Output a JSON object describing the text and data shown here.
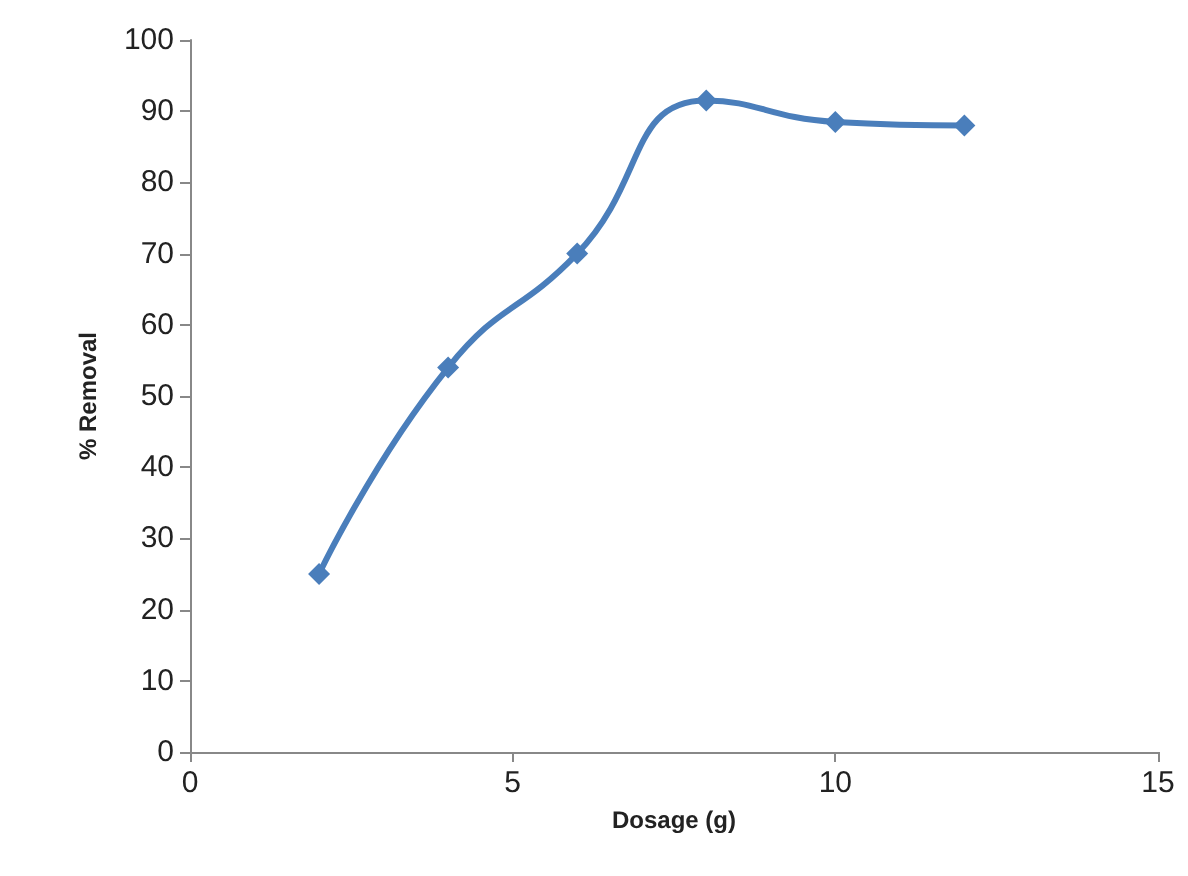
{
  "chart_data": {
    "type": "line",
    "xlabel": "Dosage (g)",
    "ylabel": "% Removal",
    "x": [
      2,
      4,
      6,
      8,
      10,
      12
    ],
    "series": [
      {
        "color": "#4a7ebb",
        "values": [
          25,
          54,
          70,
          91.5,
          88.5,
          88
        ]
      }
    ],
    "xlim": [
      0,
      15
    ],
    "xticks": [
      0,
      5,
      10,
      15
    ],
    "ylim": [
      0,
      100
    ],
    "yticks": [
      0,
      10,
      20,
      30,
      40,
      50,
      60,
      70,
      80,
      90,
      100
    ],
    "grid": false,
    "marker": "diamond",
    "line_style": "solid"
  }
}
